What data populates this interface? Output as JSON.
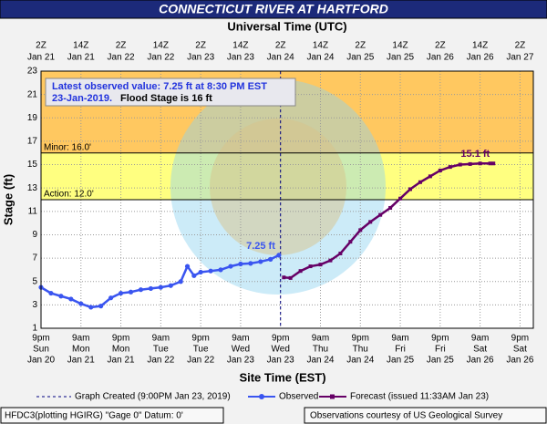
{
  "chart_data": {
    "type": "line",
    "title": "CONNECTICUT RIVER AT HARTFORD",
    "top_axis_title": "Universal Time (UTC)",
    "x_axis_title": "Site Time (EST)",
    "y_axis_title": "Stage (ft)",
    "xlim": [
      0,
      148
    ],
    "xticks": [
      0,
      12,
      24,
      36,
      48,
      60,
      72,
      84,
      96,
      108,
      120,
      132,
      144
    ],
    "bottom_tick_labels": [
      [
        "9pm",
        "Sun",
        "Jan 20"
      ],
      [
        "9am",
        "Mon",
        "Jan 21"
      ],
      [
        "9pm",
        "Mon",
        "Jan 21"
      ],
      [
        "9am",
        "Tue",
        "Jan 22"
      ],
      [
        "9pm",
        "Tue",
        "Jan 22"
      ],
      [
        "9am",
        "Wed",
        "Jan 23"
      ],
      [
        "9pm",
        "Wed",
        "Jan 23"
      ],
      [
        "9am",
        "Thu",
        "Jan 24"
      ],
      [
        "9pm",
        "Thu",
        "Jan 24"
      ],
      [
        "9am",
        "Fri",
        "Jan 25"
      ],
      [
        "9pm",
        "Fri",
        "Jan 25"
      ],
      [
        "9am",
        "Sat",
        "Jan 26"
      ],
      [
        "9pm",
        "Sat",
        "Jan 26"
      ]
    ],
    "top_tick_labels": [
      [
        "2Z",
        "Jan 21"
      ],
      [
        "14Z",
        "Jan 21"
      ],
      [
        "2Z",
        "Jan 22"
      ],
      [
        "14Z",
        "Jan 22"
      ],
      [
        "2Z",
        "Jan 23"
      ],
      [
        "14Z",
        "Jan 23"
      ],
      [
        "2Z",
        "Jan 24"
      ],
      [
        "14Z",
        "Jan 24"
      ],
      [
        "2Z",
        "Jan 25"
      ],
      [
        "14Z",
        "Jan 25"
      ],
      [
        "2Z",
        "Jan 26"
      ],
      [
        "14Z",
        "Jan 26"
      ],
      [
        "2Z",
        "Jan 27"
      ]
    ],
    "ylim": [
      1,
      23
    ],
    "yticks": [
      1,
      3,
      5,
      7,
      9,
      11,
      13,
      15,
      17,
      19,
      21,
      23
    ],
    "grid": true,
    "thresholds": [
      {
        "label": "Action: 12.0'",
        "value": 12,
        "color": "#ffff80"
      },
      {
        "label": "Minor: 16.0'",
        "value": 16,
        "color": "#ffc860"
      }
    ],
    "graph_created": {
      "label": "Graph Created (9:00PM Jan 23, 2019)",
      "x": 72,
      "color": "#000080"
    },
    "annotation": {
      "line1": "Latest observed value: 7.25 ft at 8:30 PM EST",
      "line2_date": "23-Jan-2019.",
      "line2_text": "Flood Stage is 16 ft"
    },
    "series": [
      {
        "name": "Observed",
        "color": "#3a55f0",
        "marker": "circle",
        "end_label": "7.25 ft",
        "x": [
          0,
          3,
          6,
          9,
          12,
          15,
          18,
          21,
          24,
          27,
          30,
          33,
          36,
          39,
          42,
          44,
          46,
          48,
          51,
          54,
          57,
          60,
          63,
          66,
          69,
          71.5
        ],
        "values": [
          4.5,
          4.0,
          3.75,
          3.5,
          3.1,
          2.8,
          2.9,
          3.6,
          4.0,
          4.1,
          4.3,
          4.4,
          4.5,
          4.65,
          5.0,
          6.3,
          5.5,
          5.8,
          5.9,
          6.0,
          6.3,
          6.5,
          6.55,
          6.7,
          6.9,
          7.25
        ]
      },
      {
        "name": "Forecast (issued 11:33AM Jan 23)",
        "color": "#660066",
        "marker": "square",
        "end_label": "15.1 ft",
        "x": [
          73,
          75,
          78,
          81,
          84,
          87,
          90,
          93,
          96,
          99,
          102,
          105,
          108,
          111,
          114,
          117,
          120,
          123,
          126,
          129,
          132,
          135,
          136
        ],
        "values": [
          5.35,
          5.3,
          5.9,
          6.3,
          6.45,
          6.8,
          7.4,
          8.4,
          9.4,
          10.1,
          10.7,
          11.3,
          12.1,
          12.9,
          13.5,
          14.0,
          14.5,
          14.8,
          15.0,
          15.05,
          15.1,
          15.1,
          15.1
        ]
      }
    ],
    "footer_left": "HFDC3(plotting HGIRG) \"Gage 0\" Datum: 0'",
    "footer_right": "Observations courtesy of US Geological Survey"
  }
}
